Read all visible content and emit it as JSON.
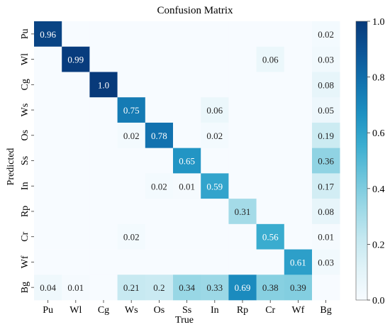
{
  "chart_data": {
    "type": "heatmap",
    "title": "Confusion Matrix",
    "xlabel": "True",
    "ylabel": "Predicted",
    "x_categories": [
      "Pu",
      "Wl",
      "Cg",
      "Ws",
      "Os",
      "Ss",
      "In",
      "Rp",
      "Cr",
      "Wf",
      "Bg"
    ],
    "y_categories": [
      "Pu",
      "Wl",
      "Cg",
      "Ws",
      "Os",
      "Ss",
      "In",
      "Rp",
      "Cr",
      "Wf",
      "Bg"
    ],
    "values": [
      [
        0.96,
        0,
        0,
        0,
        0,
        0,
        0,
        0,
        0,
        0,
        0.02
      ],
      [
        0,
        0.99,
        0,
        0,
        0,
        0,
        0,
        0,
        0.06,
        0,
        0.03
      ],
      [
        0,
        0,
        1.0,
        0,
        0,
        0,
        0,
        0,
        0,
        0,
        0.08
      ],
      [
        0,
        0,
        0,
        0.75,
        0,
        0,
        0.06,
        0,
        0,
        0,
        0.05
      ],
      [
        0,
        0,
        0,
        0.02,
        0.78,
        0,
        0.02,
        0,
        0,
        0,
        0.19
      ],
      [
        0,
        0,
        0,
        0,
        0,
        0.65,
        0,
        0,
        0,
        0,
        0.36
      ],
      [
        0,
        0,
        0,
        0,
        0.02,
        0.01,
        0.59,
        0,
        0,
        0,
        0.17
      ],
      [
        0,
        0,
        0,
        0,
        0,
        0,
        0,
        0.31,
        0,
        0,
        0.08
      ],
      [
        0,
        0,
        0,
        0.02,
        0,
        0,
        0,
        0,
        0.56,
        0,
        0.01
      ],
      [
        0,
        0,
        0,
        0,
        0,
        0,
        0,
        0,
        0,
        0.61,
        0.03
      ],
      [
        0.04,
        0.01,
        0,
        0.21,
        0.2,
        0.34,
        0.33,
        0.69,
        0.38,
        0.39,
        0
      ]
    ],
    "labels": [
      [
        "0.96",
        "",
        "",
        "",
        "",
        "",
        "",
        "",
        "",
        "",
        "0.02"
      ],
      [
        "",
        "0.99",
        "",
        "",
        "",
        "",
        "",
        "",
        "0.06",
        "",
        "0.03"
      ],
      [
        "",
        "",
        "1.0",
        "",
        "",
        "",
        "",
        "",
        "",
        "",
        "0.08"
      ],
      [
        "",
        "",
        "",
        "0.75",
        "",
        "",
        "0.06",
        "",
        "",
        "",
        "0.05"
      ],
      [
        "",
        "",
        "",
        "0.02",
        "0.78",
        "",
        "0.02",
        "",
        "",
        "",
        "0.19"
      ],
      [
        "",
        "",
        "",
        "",
        "",
        "0.65",
        "",
        "",
        "",
        "",
        "0.36"
      ],
      [
        "",
        "",
        "",
        "",
        "0.02",
        "0.01",
        "0.59",
        "",
        "",
        "",
        "0.17"
      ],
      [
        "",
        "",
        "",
        "",
        "",
        "",
        "",
        "0.31",
        "",
        "",
        "0.08"
      ],
      [
        "",
        "",
        "",
        "0.02",
        "",
        "",
        "",
        "",
        "0.56",
        "",
        "0.01"
      ],
      [
        "",
        "",
        "",
        "",
        "",
        "",
        "",
        "",
        "",
        "0.61",
        "0.03"
      ],
      [
        "0.04",
        "0.01",
        "",
        "0.21",
        "0.2",
        "0.34",
        "0.33",
        "0.69",
        "0.38",
        "0.39",
        ""
      ]
    ],
    "colorbar": {
      "range": [
        0,
        1
      ],
      "ticks": [
        0.0,
        0.2,
        0.4,
        0.6,
        0.8,
        1.0
      ],
      "tick_labels": [
        "0.0",
        "0.2",
        "0.4",
        "0.6",
        "0.8",
        "1.0"
      ],
      "colormap": [
        "#f7fbff",
        "#e1f3f8",
        "#c4e8f0",
        "#9bd8e6",
        "#6cc4db",
        "#3badd0",
        "#1e91c2",
        "#1273af",
        "#0c5597",
        "#083a7a"
      ]
    },
    "grid": false,
    "text_color_light": "#ffffff",
    "text_color_dark": "#262626"
  }
}
